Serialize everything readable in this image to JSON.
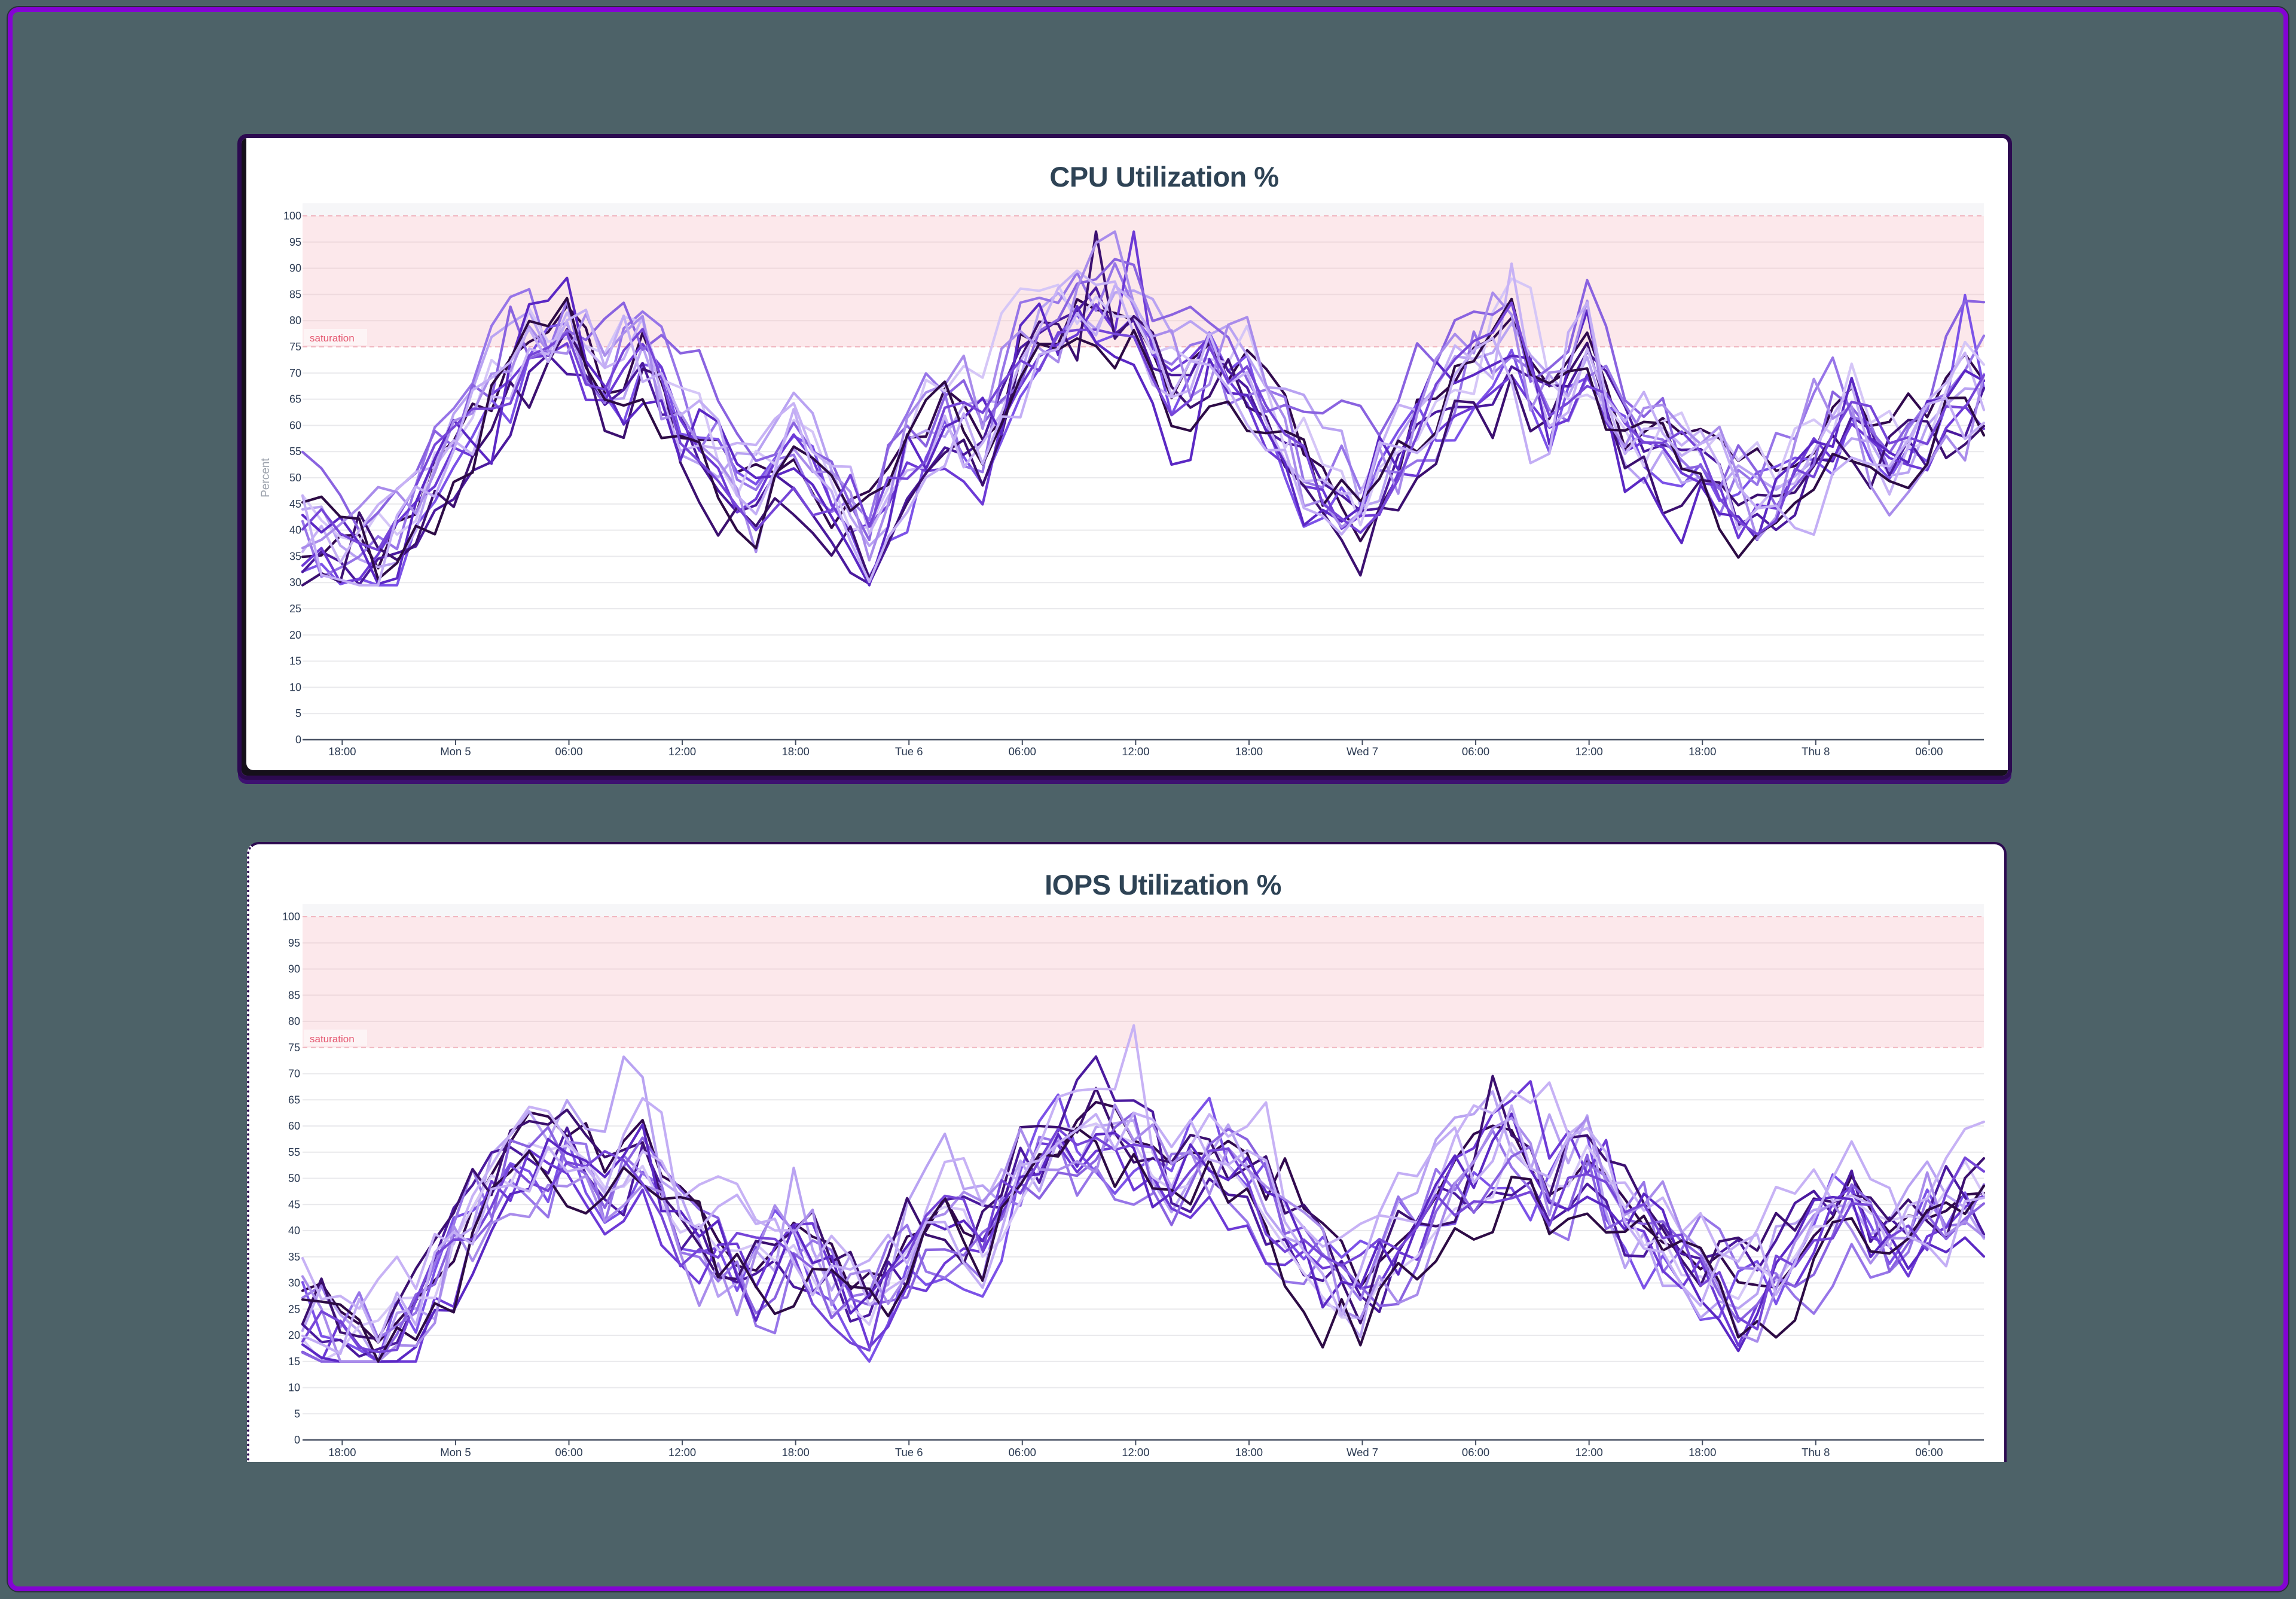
{
  "background": {
    "page_bg": "#4d6268",
    "frame_color": "#8403d3"
  },
  "chart_data": [
    {
      "type": "line",
      "title": "CPU Utilization %",
      "ylabel": "Percent",
      "ylim": [
        0,
        100
      ],
      "ytick_step": 5,
      "grid": true,
      "legend": "none",
      "x_tick_labels": [
        "18:00",
        "Mon 5",
        "06:00",
        "12:00",
        "18:00",
        "Tue 6",
        "06:00",
        "12:00",
        "18:00",
        "Wed 7",
        "06:00",
        "12:00",
        "18:00",
        "Thu 8",
        "06:00"
      ],
      "x_tick_interval_hours": 6,
      "x_first_tick_hour": 2.1,
      "hours_total": 89,
      "threshold_band": {
        "from": 75,
        "to": 100,
        "label": "saturation"
      },
      "series_count": 15,
      "mean_profile_step_hours": 2,
      "mean_profile": [
        40,
        37,
        36,
        44,
        54,
        66,
        74,
        78,
        68,
        74,
        62,
        55,
        49,
        55,
        46,
        40,
        52,
        62,
        56,
        74,
        80,
        83,
        80,
        68,
        75,
        71,
        60,
        50,
        45,
        56,
        64,
        72,
        78,
        66,
        74,
        61,
        55,
        52,
        45,
        48,
        56,
        62,
        54,
        60,
        66
      ],
      "spread": 5.2,
      "jitter": 7.4,
      "value_clamp": [
        29.5,
        97
      ],
      "accents": [
        {
          "series": 5,
          "hour": 44,
          "delta": 13
        },
        {
          "series": 7,
          "hour": 42,
          "delta": 16
        },
        {
          "series": 9,
          "hour": 64,
          "delta": 12
        },
        {
          "series": 1,
          "hour": 88,
          "delta": 14
        }
      ],
      "palette": [
        "#31094e",
        "#7c52e8",
        "#b9a3f2",
        "#4b1a9e",
        "#9775e8",
        "#6d3ad6",
        "#d5c6f7",
        "#3c1070",
        "#8a63e0",
        "#c7b2f5",
        "#5b28c4",
        "#a98ceb",
        "#2d0b45",
        "#7646d8",
        "#c3aef5"
      ]
    },
    {
      "type": "line",
      "title": "IOPS Utilization %",
      "ylabel": "",
      "ylim": [
        0,
        100
      ],
      "ytick_step": 5,
      "grid": true,
      "legend": "none",
      "x_tick_labels": [
        "18:00",
        "Mon 5",
        "06:00",
        "12:00",
        "18:00",
        "Tue 6",
        "06:00",
        "12:00",
        "18:00",
        "Wed 7",
        "06:00",
        "12:00",
        "18:00",
        "Thu 8",
        "06:00"
      ],
      "x_tick_interval_hours": 6,
      "x_first_tick_hour": 2.1,
      "hours_total": 89,
      "threshold_band": {
        "from": 75,
        "to": 100,
        "label": "saturation"
      },
      "series_count": 15,
      "mean_profile_step_hours": 2,
      "mean_profile": [
        25,
        22,
        21,
        28,
        37,
        47,
        55,
        57,
        50,
        55,
        44,
        38,
        33,
        38,
        31,
        26,
        35,
        44,
        39,
        52,
        57,
        60,
        58,
        48,
        55,
        52,
        42,
        33,
        29,
        38,
        46,
        51,
        57,
        48,
        55,
        43,
        38,
        35,
        30,
        33,
        40,
        46,
        38,
        43,
        48
      ],
      "spread": 5.0,
      "jitter": 6.8,
      "value_clamp": [
        15,
        80
      ],
      "accents": [
        {
          "series": 9,
          "hour": 44,
          "delta": 16
        },
        {
          "series": 2,
          "hour": 66,
          "delta": 14
        }
      ],
      "palette": [
        "#31094e",
        "#7c52e8",
        "#b9a3f2",
        "#4b1a9e",
        "#9775e8",
        "#6d3ad6",
        "#d5c6f7",
        "#3c1070",
        "#8a63e0",
        "#c7b2f5",
        "#5b28c4",
        "#a98ceb",
        "#2d0b45",
        "#7646d8",
        "#c3aef5"
      ]
    }
  ],
  "style_colors": {
    "band_fill": "#fce8eb",
    "band_dash": "#f0b6bf",
    "saturation_text": "#e4556e",
    "saturation_bg": "#fdf4f5",
    "grid_line": "#e9e9ec",
    "grid_line_in_band": "#eed9dd",
    "axis_line": "#475062",
    "tick_label": "#2b3a52",
    "ylabel_text": "#9ba1ab",
    "top_strip": "#f6f6f8"
  }
}
